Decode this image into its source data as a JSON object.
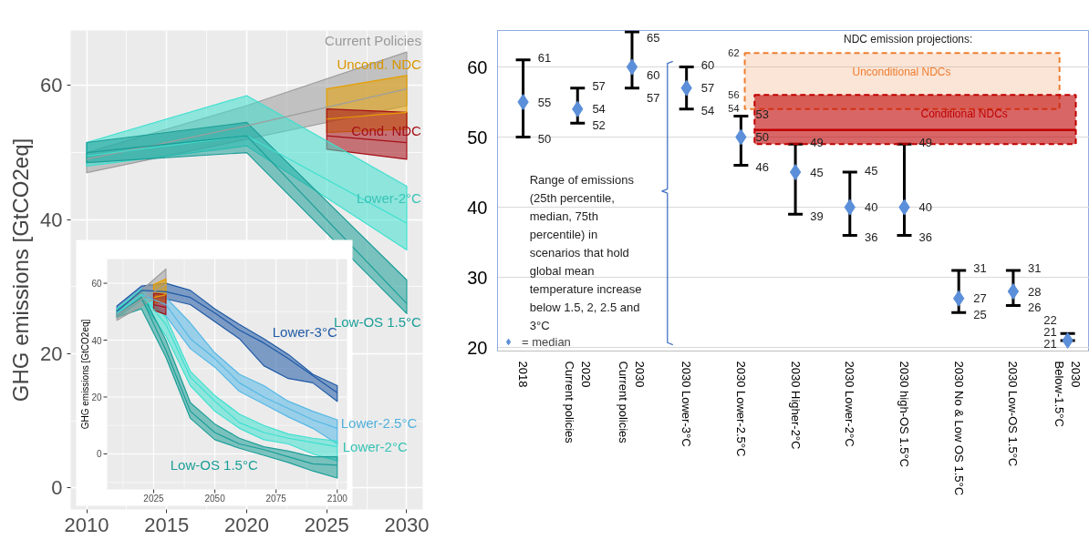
{
  "chart_data": [
    {
      "type": "line",
      "ylabel": "GHG emissions [GtCO2eq]",
      "xlim": [
        2009,
        2031
      ],
      "ylim": [
        -3.2,
        68.2
      ],
      "xticks": [
        2010,
        2015,
        2020,
        2025,
        2030
      ],
      "yticks": [
        0,
        20,
        40,
        60
      ],
      "grid": true,
      "series": [
        {
          "name": "Current Policies",
          "color": "#9e9e9e",
          "x": [
            2010,
            2020,
            2030
          ],
          "values": [
            49,
            54,
            59.5
          ],
          "lower": [
            47,
            52,
            57
          ],
          "upper": [
            50,
            57,
            65
          ]
        },
        {
          "name": "Uncond. NDC",
          "color": "#e69f00",
          "x": [
            2025,
            2030
          ],
          "values": [
            55,
            56
          ],
          "lower": [
            53,
            53.5
          ],
          "upper": [
            59.5,
            61.5
          ]
        },
        {
          "name": "Cond. NDC",
          "color": "#a50f15",
          "x": [
            2025,
            2030
          ],
          "values": [
            52.5,
            51.5
          ],
          "lower": [
            50.5,
            49
          ],
          "upper": [
            56.5,
            56
          ]
        },
        {
          "name": "Lower-2°C",
          "color": "#3fe0d0",
          "x": [
            2010,
            2020,
            2030
          ],
          "values": [
            49.5,
            52.5,
            39.5
          ],
          "lower": [
            48,
            51,
            35.5
          ],
          "upper": [
            51.5,
            58.5,
            45
          ]
        },
        {
          "name": "Low-OS 1.5°C",
          "color": "#1b9e98",
          "x": [
            2010,
            2020,
            2030
          ],
          "values": [
            50,
            52.5,
            27.5
          ],
          "lower": [
            48.5,
            50,
            26
          ],
          "upper": [
            51.5,
            54.5,
            31
          ]
        }
      ]
    },
    {
      "type": "line",
      "ylabel": "GHG emissions [GtCO2eq]",
      "xlim": [
        2006,
        2104
      ],
      "ylim": [
        -12.5,
        68.5
      ],
      "xticks": [
        2025,
        2050,
        2075,
        2100
      ],
      "yticks": [
        0,
        20,
        40,
        60
      ],
      "grid": true,
      "series": [
        {
          "name": "Lower-3°C",
          "color": "#1f5aa6",
          "x": [
            2010,
            2020,
            2030,
            2040,
            2050,
            2060,
            2070,
            2080,
            2090,
            2100
          ],
          "values": [
            50,
            57.5,
            57,
            55,
            49.5,
            43.5,
            39,
            33.5,
            27.5,
            21.5
          ],
          "lower": [
            48,
            55,
            54.5,
            52.5,
            46.5,
            40.5,
            31,
            26.5,
            25,
            18.5
          ],
          "upper": [
            52,
            59,
            60,
            57.5,
            51,
            45.5,
            40.5,
            35,
            28,
            24
          ]
        },
        {
          "name": "Lower-2.5°C",
          "color": "#56b8e6",
          "x": [
            2010,
            2020,
            2030,
            2040,
            2050,
            2060,
            2070,
            2080,
            2090,
            2100
          ],
          "values": [
            49,
            56,
            52.5,
            40.5,
            33.5,
            25,
            20,
            16,
            12,
            9
          ],
          "lower": [
            48,
            54,
            48.5,
            37,
            30.5,
            22,
            17.5,
            13,
            9,
            3.5
          ],
          "upper": [
            51,
            58,
            55,
            46,
            35.5,
            28,
            24,
            18.5,
            15,
            12
          ]
        },
        {
          "name": "Lower-2°C",
          "color": "#3fe0d0",
          "x": [
            2010,
            2020,
            2030,
            2040,
            2050,
            2060,
            2070,
            2080,
            2090,
            2100
          ],
          "values": [
            49.5,
            56,
            45.5,
            27,
            18.5,
            11,
            7.5,
            5.5,
            4,
            2.5
          ],
          "lower": [
            48,
            54,
            41.5,
            24,
            15,
            9,
            5,
            3.5,
            0,
            -2.5
          ],
          "upper": [
            51,
            58,
            48,
            29,
            20.5,
            14,
            10,
            7,
            5.5,
            4.5
          ]
        },
        {
          "name": "Low-OS 1.5°C",
          "color": "#1b9e98",
          "x": [
            2010,
            2020,
            2030,
            2040,
            2050,
            2060,
            2070,
            2080,
            2090,
            2100
          ],
          "values": [
            49,
            55,
            36.5,
            15,
            7.5,
            3.5,
            1.5,
            -1,
            -3.5,
            -4
          ],
          "lower": [
            48,
            51,
            34,
            12.5,
            5,
            2,
            -0.5,
            -3,
            -6,
            -8.5
          ],
          "upper": [
            50.5,
            57,
            40,
            18,
            10.5,
            5.5,
            2.5,
            1,
            -1,
            -1
          ]
        },
        {
          "color": "#9e9e9e",
          "x": [
            2010,
            2030
          ],
          "values": [
            49,
            59.5
          ],
          "lower": [
            47,
            57
          ],
          "upper": [
            50,
            65
          ]
        },
        {
          "color": "#e69f00",
          "x": [
            2025,
            2030
          ],
          "values": [
            55,
            56
          ],
          "lower": [
            53,
            53.5
          ],
          "upper": [
            59.5,
            61.5
          ]
        },
        {
          "color": "#a50f15",
          "x": [
            2025,
            2030
          ],
          "values": [
            52.5,
            51.5
          ],
          "lower": [
            50.5,
            49
          ],
          "upper": [
            56.5,
            56
          ]
        }
      ]
    },
    {
      "type": "scatter",
      "marker": "diamond",
      "categories": [
        "2018",
        "2020\nCurrent policies",
        "2030\nCurrent policies",
        "2030 Lower-3°C",
        "2030 Lower-2.5°C",
        "2030 Higher-2°C",
        "2030 Lower-2°C",
        "2030 high-OS 1.5°C",
        "2030 No & Low OS 1.5°C",
        "2030 Low-OS 1.5°C",
        "2030\nBelow-1.5°C"
      ],
      "ylim": [
        19.5,
        65.2
      ],
      "yticks": [
        20,
        30,
        40,
        50,
        60
      ],
      "grid": "y",
      "legend": "bottom left",
      "data_labels": true,
      "series": [
        {
          "name": "= median",
          "color": "#5b8fd9",
          "values": [
            55,
            54,
            60,
            57,
            50,
            45,
            40,
            40,
            27,
            28,
            21
          ],
          "errors": [
            [
              50,
              61
            ],
            [
              52,
              57
            ],
            [
              57,
              65
            ],
            [
              54,
              60
            ],
            [
              46,
              53
            ],
            [
              39,
              49
            ],
            [
              36,
              45
            ],
            [
              36,
              49
            ],
            [
              25,
              31
            ],
            [
              26,
              31
            ],
            [
              21,
              22
            ]
          ]
        }
      ],
      "bands": [
        {
          "axis": "y",
          "from": 54,
          "to": 62,
          "label": "Unconditional NDCs",
          "color": "#ed7d31"
        },
        {
          "axis": "y",
          "from": 49,
          "to": 56,
          "label": "Conditional NDCs",
          "color": "#c00000"
        }
      ],
      "ref_lines": [
        {
          "axis": "y",
          "value": 51,
          "color": "#c00000"
        }
      ],
      "annotations": [
        "NDC emission projections:",
        "Range of emissions\n(25th percentile,\nmedian, 75th\npercentile) in\nscenarios that hold\nglobal mean\ntemperature increase\nbelow 1.5, 2, 2.5 and\n3°C",
        "62",
        "56",
        "54",
        {
          "text": "61",
          "x": "2018",
          "y": 61
        },
        {
          "text": "50",
          "x": "2018",
          "y": 50
        },
        {
          "text": "57",
          "x": "2020\nCurrent policies",
          "y": 57
        },
        {
          "text": "52",
          "x": "2020\nCurrent policies",
          "y": 52
        },
        {
          "text": "65",
          "x": "2030\nCurrent policies",
          "y": 65
        },
        {
          "text": "57",
          "x": "2030\nCurrent policies",
          "y": 57
        },
        {
          "text": "60",
          "x": "2030 Lower-3°C",
          "y": 60
        },
        {
          "text": "54",
          "x": "2030 Lower-3°C",
          "y": 54
        },
        {
          "text": "53",
          "x": "2030 Lower-2.5°C",
          "y": 53
        },
        {
          "text": "46",
          "x": "2030 Lower-2.5°C",
          "y": 46
        },
        {
          "text": "49",
          "x": "2030 Higher-2°C",
          "y": 49
        },
        {
          "text": "39",
          "x": "2030 Higher-2°C",
          "y": 39
        },
        {
          "text": "45",
          "x": "2030 Lower-2°C",
          "y": 45
        },
        {
          "text": "36",
          "x": "2030 Lower-2°C",
          "y": 36
        },
        {
          "text": "49",
          "x": "2030 high-OS 1.5°C",
          "y": 49
        },
        {
          "text": "36",
          "x": "2030 high-OS 1.5°C",
          "y": 36
        },
        {
          "text": "31",
          "x": "2030 No & Low OS 1.5°C",
          "y": 31
        },
        {
          "text": "25",
          "x": "2030 No & Low OS 1.5°C",
          "y": 25
        },
        {
          "text": "31",
          "x": "2030 Low-OS 1.5°C",
          "y": 31
        },
        {
          "text": "26",
          "x": "2030 Low-OS 1.5°C",
          "y": 26
        },
        {
          "text": "22",
          "x": "2030\nBelow-1.5°C",
          "y": 22
        },
        {
          "text": "21",
          "x": "2030\nBelow-1.5°C",
          "y": 21
        }
      ]
    }
  ]
}
